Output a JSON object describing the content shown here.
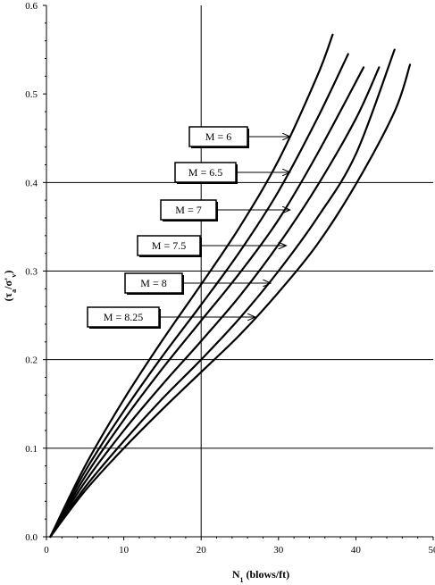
{
  "chart_data": {
    "type": "line",
    "xlabel_main": "N",
    "xlabel_sub": "1",
    "xlabel_rest": " (blows/ft)",
    "ylabel_open": "(",
    "ylabel_tau": "τ",
    "ylabel_tau_sub": "a",
    "ylabel_sep": "/",
    "ylabel_sigma": "σ'",
    "ylabel_sigma_sub": "v",
    "ylabel_close": ")",
    "xlim": [
      0,
      50
    ],
    "ylim": [
      0,
      0.6
    ],
    "x_ticks": [
      0,
      10,
      20,
      30,
      40,
      50
    ],
    "x_tick_labels": [
      "0",
      "10",
      "20",
      "30",
      "40",
      "50"
    ],
    "y_ticks": [
      0,
      0.1,
      0.2,
      0.3,
      0.4,
      0.5,
      0.6
    ],
    "y_tick_labels": [
      "0.0",
      "0.1",
      "0.2",
      "0.3",
      "0.4",
      "0.5",
      "0.6"
    ],
    "gridlines": {
      "x": [
        20
      ],
      "y": [
        0.1,
        0.2,
        0.3,
        0.4
      ]
    },
    "series": [
      {
        "name": "M = 6",
        "x": [
          0.5,
          5,
          10,
          15,
          20,
          25,
          30,
          35,
          37
        ],
        "y": [
          0,
          0.08,
          0.155,
          0.222,
          0.285,
          0.35,
          0.425,
          0.52,
          0.567
        ]
      },
      {
        "name": "M = 6.5",
        "x": [
          0.5,
          5,
          10,
          15,
          20,
          25,
          30,
          35,
          39
        ],
        "y": [
          0,
          0.074,
          0.142,
          0.204,
          0.262,
          0.322,
          0.39,
          0.472,
          0.545
        ]
      },
      {
        "name": "M = 7",
        "x": [
          0.5,
          5,
          10,
          15,
          20,
          25,
          30,
          35,
          41
        ],
        "y": [
          0,
          0.068,
          0.132,
          0.19,
          0.244,
          0.298,
          0.358,
          0.432,
          0.53
        ]
      },
      {
        "name": "M = 7.5",
        "x": [
          0.5,
          5,
          10,
          15,
          20,
          25,
          30,
          35,
          40,
          43
        ],
        "y": [
          0,
          0.062,
          0.12,
          0.172,
          0.221,
          0.272,
          0.33,
          0.396,
          0.472,
          0.53
        ]
      },
      {
        "name": "M = 8",
        "x": [
          0.5,
          5,
          10,
          15,
          20,
          25,
          30,
          35,
          40,
          45
        ],
        "y": [
          0,
          0.056,
          0.108,
          0.156,
          0.2,
          0.247,
          0.3,
          0.36,
          0.432,
          0.55
        ]
      },
      {
        "name": "M = 8.25",
        "x": [
          0.5,
          5,
          10,
          15,
          20,
          25,
          30,
          35,
          40,
          45,
          47
        ],
        "y": [
          0,
          0.052,
          0.1,
          0.144,
          0.186,
          0.228,
          0.276,
          0.33,
          0.398,
          0.48,
          0.533
        ]
      }
    ],
    "annotations": [
      {
        "label": "M = 6",
        "arrow_to": [
          31.5,
          0.448
        ]
      },
      {
        "label": "M = 6.5",
        "arrow_to": [
          31.5,
          0.41
        ]
      },
      {
        "label": "M = 7",
        "arrow_to": [
          31.5,
          0.368
        ]
      },
      {
        "label": "M = 7.5",
        "arrow_to": [
          31,
          0.327
        ]
      },
      {
        "label": "M = 8",
        "arrow_to": [
          29,
          0.285
        ]
      },
      {
        "label": "M = 8.25",
        "arrow_to": [
          27,
          0.248
        ]
      }
    ]
  }
}
